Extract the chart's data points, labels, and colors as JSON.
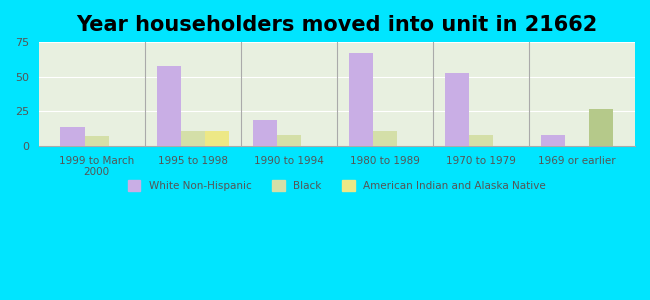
{
  "title": "Year householders moved into unit in 21662",
  "categories": [
    "1999 to March\n2000",
    "1995 to 1998",
    "1990 to 1994",
    "1980 to 1989",
    "1970 to 1979",
    "1969 or earlier"
  ],
  "white_non_hispanic": [
    14,
    58,
    19,
    67,
    53,
    8
  ],
  "black": [
    7,
    11,
    8,
    11,
    8,
    0
  ],
  "american_indian": [
    0,
    11,
    0,
    0,
    0,
    0
  ],
  "green_bar": [
    0,
    0,
    0,
    0,
    0,
    27
  ],
  "white_color": "#c9aee5",
  "black_color": "#d4dfa8",
  "american_indian_color": "#ede886",
  "green_color": "#b5c98a",
  "background_outer": "#00e5ff",
  "background_plot": "#e8f0e0",
  "ylim": [
    0,
    75
  ],
  "yticks": [
    0,
    25,
    50,
    75
  ],
  "bar_width": 0.25,
  "title_fontsize": 15
}
